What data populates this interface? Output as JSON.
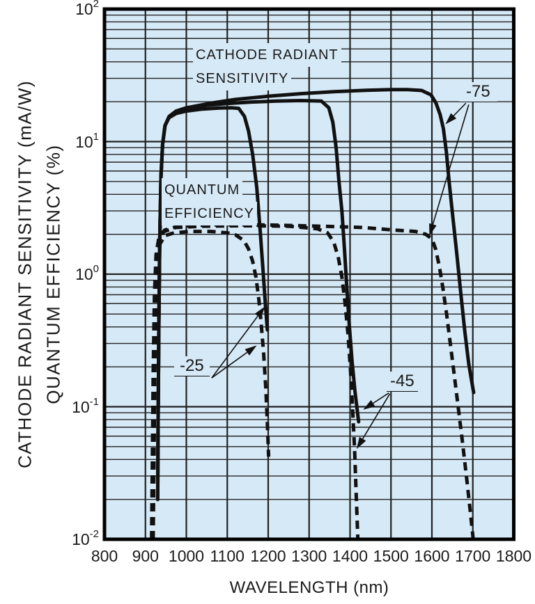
{
  "chart_data": {
    "type": "line",
    "x_axis": {
      "label": "WAVELENGTH (nm)",
      "min": 800,
      "max": 1800,
      "ticks": [
        800,
        900,
        1000,
        1100,
        1200,
        1300,
        1400,
        1500,
        1600,
        1700,
        1800
      ]
    },
    "y_axis": {
      "labels": [
        "CATHODE RADIANT SENSITIVITY (mA/W)",
        "QUANTUM EFFICIENCY (%)"
      ],
      "scale": "log",
      "min_exp": -2,
      "max_exp": 2,
      "tick_exponents": [
        2,
        1,
        0,
        -1,
        -2
      ]
    },
    "grid": {
      "minor_log_steps": [
        2,
        3,
        4,
        5,
        6,
        7,
        8,
        9
      ],
      "vertical_lines_nm": [
        900,
        1000,
        1100,
        1200,
        1300,
        1400,
        1500,
        1600,
        1700
      ],
      "decade_lines_exp": [
        1,
        0,
        -1
      ]
    },
    "curve_group_labels": {
      "solid": [
        "CATHODE RADIANT",
        "SENSITIVITY"
      ],
      "dashed": [
        "QUANTUM",
        "EFFICIENCY"
      ]
    },
    "series": [
      {
        "id": "type-25-sensitivity",
        "label": "-25",
        "quantity": "cathode radiant sensitivity (mA/W)",
        "style": "solid",
        "points": [
          [
            930,
            0.02
          ],
          [
            931,
            0.08
          ],
          [
            933,
            0.45
          ],
          [
            935,
            1.8
          ],
          [
            938,
            5.5
          ],
          [
            942,
            9.5
          ],
          [
            948,
            13.2
          ],
          [
            958,
            15.2
          ],
          [
            975,
            16.3
          ],
          [
            1000,
            17.0
          ],
          [
            1040,
            17.6
          ],
          [
            1080,
            17.9
          ],
          [
            1110,
            18.0
          ],
          [
            1128,
            17.8
          ],
          [
            1142,
            15.5
          ],
          [
            1152,
            12.0
          ],
          [
            1162,
            8.0
          ],
          [
            1172,
            4.5
          ],
          [
            1180,
            2.2
          ],
          [
            1187,
            1.1
          ],
          [
            1193,
            0.6
          ],
          [
            1198,
            0.38
          ]
        ]
      },
      {
        "id": "type-45-sensitivity",
        "label": "-45",
        "quantity": "cathode radiant sensitivity (mA/W)",
        "style": "solid",
        "points": [
          [
            930,
            0.02
          ],
          [
            931,
            0.08
          ],
          [
            933,
            0.45
          ],
          [
            935,
            1.8
          ],
          [
            938,
            5.5
          ],
          [
            942,
            9.5
          ],
          [
            948,
            13.2
          ],
          [
            958,
            15.4
          ],
          [
            975,
            16.8
          ],
          [
            1000,
            17.8
          ],
          [
            1050,
            18.8
          ],
          [
            1100,
            19.4
          ],
          [
            1160,
            19.9
          ],
          [
            1220,
            20.2
          ],
          [
            1280,
            20.4
          ],
          [
            1330,
            20.2
          ],
          [
            1348,
            18.0
          ],
          [
            1358,
            14.0
          ],
          [
            1366,
            9.0
          ],
          [
            1373,
            5.0
          ],
          [
            1380,
            3.0
          ],
          [
            1386,
            1.6
          ],
          [
            1392,
            0.8
          ],
          [
            1398,
            0.42
          ],
          [
            1405,
            0.22
          ],
          [
            1412,
            0.13
          ],
          [
            1421,
            0.077
          ]
        ]
      },
      {
        "id": "type-75-sensitivity",
        "label": "-75",
        "quantity": "cathode radiant sensitivity (mA/W)",
        "style": "solid",
        "points": [
          [
            930,
            0.02
          ],
          [
            931,
            0.08
          ],
          [
            933,
            0.45
          ],
          [
            935,
            1.8
          ],
          [
            938,
            5.5
          ],
          [
            942,
            9.5
          ],
          [
            948,
            13.2
          ],
          [
            958,
            15.5
          ],
          [
            975,
            17.0
          ],
          [
            1000,
            18.0
          ],
          [
            1060,
            19.5
          ],
          [
            1120,
            20.8
          ],
          [
            1200,
            22.0
          ],
          [
            1280,
            23.0
          ],
          [
            1360,
            23.8
          ],
          [
            1440,
            24.4
          ],
          [
            1500,
            24.7
          ],
          [
            1540,
            24.7
          ],
          [
            1575,
            24.3
          ],
          [
            1598,
            22.5
          ],
          [
            1610,
            19.5
          ],
          [
            1620,
            16.0
          ],
          [
            1628,
            12.5
          ],
          [
            1635,
            8.5
          ],
          [
            1642,
            5.0
          ],
          [
            1650,
            2.9
          ],
          [
            1660,
            1.5
          ],
          [
            1670,
            0.75
          ],
          [
            1680,
            0.38
          ],
          [
            1690,
            0.21
          ],
          [
            1702,
            0.128
          ]
        ]
      },
      {
        "id": "type-25-qe",
        "label": "-25",
        "quantity": "quantum efficiency (%)",
        "style": "dashed",
        "points": [
          [
            919,
            0.01
          ],
          [
            921,
            0.04
          ],
          [
            923,
            0.18
          ],
          [
            926,
            0.7
          ],
          [
            930,
            1.3
          ],
          [
            936,
            1.7
          ],
          [
            948,
            1.95
          ],
          [
            970,
            2.05
          ],
          [
            1010,
            2.1
          ],
          [
            1060,
            2.1
          ],
          [
            1100,
            2.05
          ],
          [
            1120,
            1.98
          ],
          [
            1140,
            1.8
          ],
          [
            1152,
            1.55
          ],
          [
            1162,
            1.25
          ],
          [
            1170,
            0.95
          ],
          [
            1177,
            0.65
          ],
          [
            1183,
            0.42
          ],
          [
            1189,
            0.25
          ],
          [
            1194,
            0.14
          ],
          [
            1198,
            0.075
          ],
          [
            1201,
            0.042
          ]
        ]
      },
      {
        "id": "type-45-qe",
        "label": "-45",
        "quantity": "quantum efficiency (%)",
        "style": "dashed",
        "points": [
          [
            917,
            0.01
          ],
          [
            919,
            0.04
          ],
          [
            921,
            0.18
          ],
          [
            924,
            0.7
          ],
          [
            928,
            1.4
          ],
          [
            934,
            1.85
          ],
          [
            946,
            2.1
          ],
          [
            975,
            2.25
          ],
          [
            1040,
            2.3
          ],
          [
            1150,
            2.32
          ],
          [
            1250,
            2.3
          ],
          [
            1320,
            2.2
          ],
          [
            1345,
            2.05
          ],
          [
            1360,
            1.75
          ],
          [
            1371,
            1.35
          ],
          [
            1380,
            0.95
          ],
          [
            1388,
            0.6
          ],
          [
            1395,
            0.35
          ],
          [
            1401,
            0.19
          ],
          [
            1406,
            0.1
          ],
          [
            1411,
            0.048
          ],
          [
            1415,
            0.022
          ],
          [
            1419,
            0.01
          ]
        ]
      },
      {
        "id": "type-75-qe",
        "label": "-75",
        "quantity": "quantum efficiency (%)",
        "style": "dashed",
        "points": [
          [
            915,
            0.01
          ],
          [
            917,
            0.04
          ],
          [
            919,
            0.18
          ],
          [
            922,
            0.7
          ],
          [
            926,
            1.4
          ],
          [
            933,
            1.9
          ],
          [
            947,
            2.15
          ],
          [
            980,
            2.3
          ],
          [
            1060,
            2.35
          ],
          [
            1200,
            2.35
          ],
          [
            1330,
            2.3
          ],
          [
            1430,
            2.25
          ],
          [
            1510,
            2.15
          ],
          [
            1560,
            2.1
          ],
          [
            1585,
            2.0
          ],
          [
            1600,
            1.85
          ],
          [
            1609,
            1.55
          ],
          [
            1618,
            1.15
          ],
          [
            1627,
            0.78
          ],
          [
            1636,
            0.5
          ],
          [
            1645,
            0.3
          ],
          [
            1655,
            0.17
          ],
          [
            1665,
            0.095
          ],
          [
            1675,
            0.053
          ],
          [
            1686,
            0.027
          ],
          [
            1695,
            0.015
          ],
          [
            1701,
            0.01
          ]
        ]
      }
    ],
    "annotations": [
      {
        "text": "-25",
        "arrows": [
          {
            "from": [
              1062,
              0.165
            ],
            "to": [
              1192,
              0.57
            ]
          },
          {
            "from": [
              1062,
              0.165
            ],
            "to": [
              1172,
              0.29
            ]
          }
        ]
      },
      {
        "text": "-45",
        "arrows": [
          {
            "from": [
              1495,
              0.127
            ],
            "to": [
              1432,
              0.095
            ]
          },
          {
            "from": [
              1497,
              0.125
            ],
            "to": [
              1416,
              0.048
            ]
          }
        ]
      },
      {
        "text": "-75",
        "arrows": [
          {
            "from": [
              1683,
              19.5
            ],
            "to": [
              1633,
              13.5
            ]
          },
          {
            "from": [
              1690,
              19.0
            ],
            "to": [
              1594,
              1.95
            ]
          }
        ]
      }
    ],
    "colors": {
      "plot_bg": "#d6e9f6",
      "grid": "#222222",
      "frame": "#000000",
      "curve": "#111111",
      "text": "#1a1a1a"
    }
  }
}
